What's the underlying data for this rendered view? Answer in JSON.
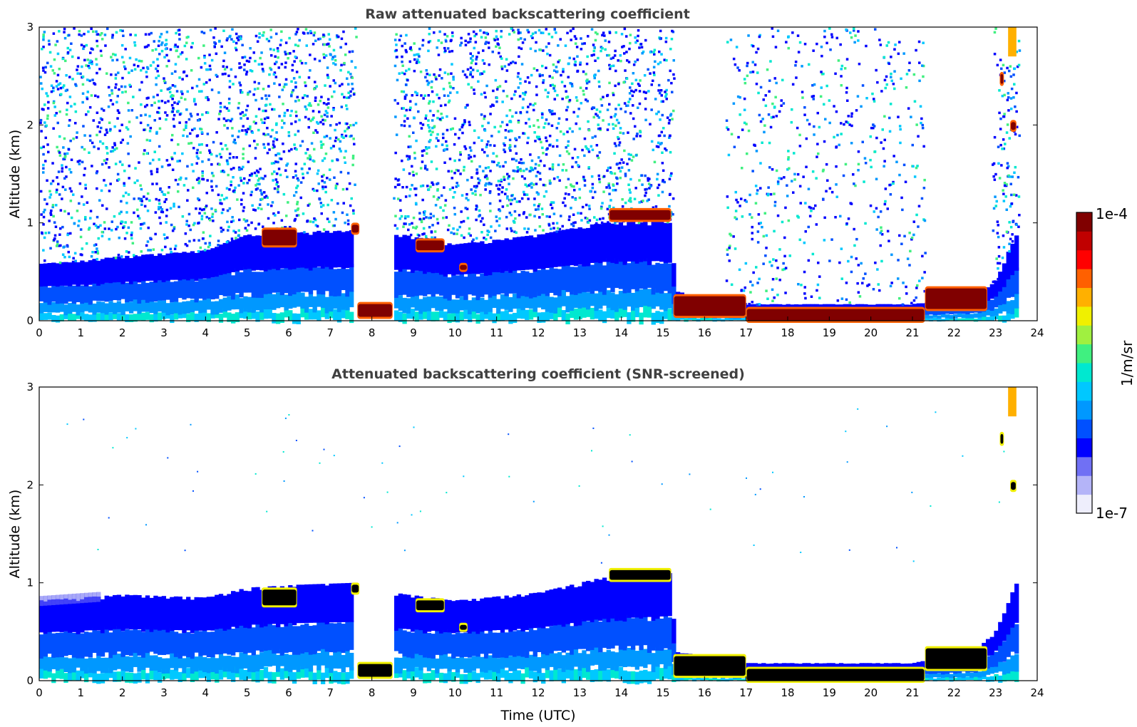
{
  "colors": {
    "colormap": [
      "#eeeefc",
      "#b4b4f8",
      "#7070f4",
      "#0000ff",
      "#0050ff",
      "#0098ff",
      "#00c8ff",
      "#00e8d0",
      "#40f080",
      "#a0f040",
      "#f0f000",
      "#ffb000",
      "#ff6000",
      "#ff0000",
      "#c00000",
      "#800000"
    ],
    "black_cloud": "#000000",
    "title": "#404040"
  },
  "chart_data": [
    {
      "type": "heatmap",
      "title": "Raw attenuated backscattering coefficient",
      "xlabel": "",
      "ylabel": "Altitude (km)",
      "xlim": [
        0,
        24
      ],
      "ylim": [
        0,
        3
      ],
      "xticks": [
        "0",
        "1",
        "2",
        "3",
        "4",
        "5",
        "6",
        "7",
        "8",
        "9",
        "10",
        "11",
        "12",
        "13",
        "14",
        "15",
        "16",
        "17",
        "18",
        "19",
        "20",
        "21",
        "22",
        "23",
        "24"
      ],
      "yticks": [
        "0",
        "1",
        "2",
        "3"
      ],
      "data_end_time": 23.55,
      "boundary_layer": [
        [
          0,
          0.58
        ],
        [
          2,
          0.66
        ],
        [
          4,
          0.72
        ],
        [
          5,
          0.88
        ],
        [
          6.2,
          0.9
        ],
        [
          7.6,
          0.95
        ],
        [
          8.5,
          0.9
        ],
        [
          10,
          0.78
        ],
        [
          12,
          0.88
        ],
        [
          13.5,
          1.0
        ],
        [
          15.2,
          1.02
        ],
        [
          15.3,
          0.3
        ],
        [
          17,
          0.17
        ],
        [
          21,
          0.17
        ],
        [
          22.5,
          0.25
        ],
        [
          23,
          0.4
        ],
        [
          23.55,
          0.95
        ]
      ],
      "noise_gaps": [
        [
          7.6,
          8.5
        ],
        [
          15.25,
          16.5
        ],
        [
          21.3,
          22.9
        ]
      ],
      "cloud_layers": [
        {
          "t0": 5.35,
          "t1": 6.2,
          "z0": 0.77,
          "z1": 0.93
        },
        {
          "t0": 7.5,
          "t1": 7.7,
          "z0": 0.9,
          "z1": 0.98
        },
        {
          "t0": 7.65,
          "t1": 8.5,
          "z0": 0.04,
          "z1": 0.17
        },
        {
          "t0": 9.05,
          "t1": 9.75,
          "z0": 0.72,
          "z1": 0.82
        },
        {
          "t0": 10.1,
          "t1": 10.3,
          "z0": 0.52,
          "z1": 0.57
        },
        {
          "t0": 13.7,
          "t1": 15.2,
          "z0": 1.03,
          "z1": 1.13
        },
        {
          "t0": 15.25,
          "t1": 17.0,
          "z0": 0.05,
          "z1": 0.25
        },
        {
          "t0": 17.0,
          "t1": 21.3,
          "z0": 0.0,
          "z1": 0.12
        },
        {
          "t0": 21.3,
          "t1": 22.8,
          "z0": 0.12,
          "z1": 0.33
        },
        {
          "t0": 23.35,
          "t1": 23.5,
          "z0": 1.95,
          "z1": 2.03
        },
        {
          "t0": 23.1,
          "t1": 23.2,
          "z0": 2.42,
          "z1": 2.52
        }
      ]
    },
    {
      "type": "heatmap",
      "title": "Attenuated backscattering coefficient (SNR-screened)",
      "xlabel": "Time (UTC)",
      "ylabel": "Altitude (km)",
      "xlim": [
        0,
        24
      ],
      "ylim": [
        0,
        3
      ],
      "xticks": [
        "0",
        "1",
        "2",
        "3",
        "4",
        "5",
        "6",
        "7",
        "8",
        "9",
        "10",
        "11",
        "12",
        "13",
        "14",
        "15",
        "16",
        "17",
        "18",
        "19",
        "20",
        "21",
        "22",
        "23",
        "24"
      ],
      "yticks": [
        "0",
        "1",
        "2",
        "3"
      ],
      "data_end_time": 23.55,
      "boundary_layer": [
        [
          0,
          0.82
        ],
        [
          2,
          0.88
        ],
        [
          4,
          0.85
        ],
        [
          5,
          0.95
        ],
        [
          6.2,
          0.98
        ],
        [
          7.6,
          1.0
        ],
        [
          8.5,
          0.9
        ],
        [
          10,
          0.82
        ],
        [
          12,
          0.9
        ],
        [
          13.5,
          1.05
        ],
        [
          15.2,
          1.1
        ],
        [
          15.3,
          0.3
        ],
        [
          17,
          0.18
        ],
        [
          21,
          0.18
        ],
        [
          22.5,
          0.3
        ],
        [
          23,
          0.5
        ],
        [
          23.55,
          1.05
        ]
      ],
      "noise_gaps": [
        [
          7.6,
          8.5
        ]
      ],
      "cloud_layers": [
        {
          "t0": 5.35,
          "t1": 6.2,
          "z0": 0.77,
          "z1": 0.93
        },
        {
          "t0": 7.5,
          "t1": 7.7,
          "z0": 0.9,
          "z1": 0.98
        },
        {
          "t0": 7.65,
          "t1": 8.5,
          "z0": 0.04,
          "z1": 0.17
        },
        {
          "t0": 9.05,
          "t1": 9.75,
          "z0": 0.72,
          "z1": 0.82
        },
        {
          "t0": 10.1,
          "t1": 10.3,
          "z0": 0.52,
          "z1": 0.57
        },
        {
          "t0": 13.7,
          "t1": 15.2,
          "z0": 1.03,
          "z1": 1.13
        },
        {
          "t0": 15.25,
          "t1": 17.0,
          "z0": 0.05,
          "z1": 0.25
        },
        {
          "t0": 17.0,
          "t1": 21.3,
          "z0": 0.0,
          "z1": 0.12
        },
        {
          "t0": 21.3,
          "t1": 22.8,
          "z0": 0.12,
          "z1": 0.33
        },
        {
          "t0": 23.35,
          "t1": 23.5,
          "z0": 1.95,
          "z1": 2.03
        },
        {
          "t0": 23.1,
          "t1": 23.2,
          "z0": 2.42,
          "z1": 2.52
        }
      ]
    }
  ],
  "colorbar": {
    "label": "1/m/sr",
    "max_label": "1e-4",
    "min_label": "1e-7"
  }
}
